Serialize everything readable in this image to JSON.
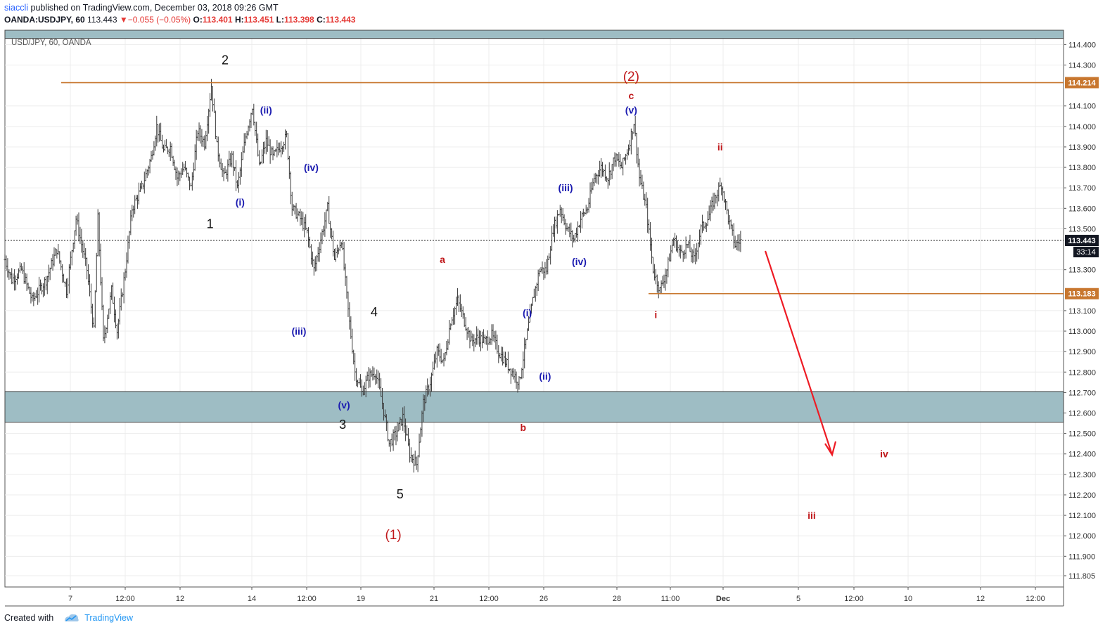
{
  "header": {
    "author": "siaccli",
    "published_text": " published on TradingView.com, December 03, 2018 09:26 GMT",
    "symbol": "OANDA:USDJPY, 60",
    "last": "113.443",
    "change_arrow": "▼",
    "change": "−0.055 (−0.05%)",
    "open_label": "O:",
    "open": "113.401",
    "high_label": "H:",
    "high": "113.451",
    "low_label": "L:",
    "low": "113.398",
    "close_label": "C:",
    "close": "113.443"
  },
  "footer": {
    "created_with": "Created with",
    "brand": "TradingView"
  },
  "colors": {
    "candle": "#3b3b3b",
    "zone": "#9ebdc4",
    "hline": "#c8772f",
    "label_blue": "#1a1ab0",
    "label_red": "#c0181b",
    "arrow": "#ee1b24"
  },
  "chart_data": {
    "type": "bar",
    "watermark": "USD/JPY, 60, OANDA",
    "ylim": [
      111.75,
      114.47
    ],
    "y_ticks": [
      "114.400",
      "114.300",
      "114.100",
      "114.000",
      "113.900",
      "113.800",
      "113.700",
      "113.600",
      "113.500",
      "113.300",
      "113.100",
      "113.000",
      "112.900",
      "112.800",
      "112.700",
      "112.600",
      "112.500",
      "112.400",
      "112.300",
      "112.200",
      "112.100",
      "112.000",
      "111.900",
      "111.805"
    ],
    "x_ticks": [
      "7",
      "12:00",
      "12",
      "14",
      "12:00",
      "19",
      "21",
      "12:00",
      "26",
      "28",
      "11:00",
      "Dec",
      "5",
      "12:00",
      "10",
      "12",
      "12:00"
    ],
    "x_tick_bold": "Dec",
    "price_tags": [
      {
        "label": "114.214",
        "price": 114.214,
        "kind": "level"
      },
      {
        "label": "113.443",
        "price": 113.443,
        "kind": "last"
      },
      {
        "label": "113.183",
        "price": 113.183,
        "kind": "level"
      }
    ],
    "countdown": "33:14",
    "resistance_level": 114.214,
    "support_level": 113.183,
    "demand_zone": [
      112.555,
      112.705
    ],
    "top_zone": [
      114.43,
      114.47
    ],
    "last_price": 113.443,
    "price_path": [
      [
        0,
        113.35
      ],
      [
        5,
        113.25
      ],
      [
        12,
        113.3
      ],
      [
        20,
        113.15
      ],
      [
        30,
        113.25
      ],
      [
        38,
        113.4
      ],
      [
        45,
        113.2
      ],
      [
        52,
        113.55
      ],
      [
        60,
        113.3
      ],
      [
        65,
        113.0
      ],
      [
        68,
        113.55
      ],
      [
        72,
        112.95
      ],
      [
        78,
        113.2
      ],
      [
        82,
        113.0
      ],
      [
        88,
        113.3
      ],
      [
        93,
        113.6
      ],
      [
        100,
        113.7
      ],
      [
        107,
        113.85
      ],
      [
        111,
        114.0
      ],
      [
        116,
        113.88
      ],
      [
        121,
        113.9
      ],
      [
        126,
        113.75
      ],
      [
        131,
        113.8
      ],
      [
        136,
        113.7
      ],
      [
        141,
        113.98
      ],
      [
        146,
        113.92
      ],
      [
        151,
        114.2
      ],
      [
        155,
        113.9
      ],
      [
        160,
        113.75
      ],
      [
        166,
        113.85
      ],
      [
        170,
        113.7
      ],
      [
        176,
        113.95
      ],
      [
        181,
        114.1
      ],
      [
        186,
        113.8
      ],
      [
        191,
        113.93
      ],
      [
        196,
        113.85
      ],
      [
        201,
        113.9
      ],
      [
        206,
        113.95
      ],
      [
        210,
        113.6
      ],
      [
        216,
        113.55
      ],
      [
        221,
        113.48
      ],
      [
        226,
        113.3
      ],
      [
        231,
        113.45
      ],
      [
        236,
        113.6
      ],
      [
        241,
        113.35
      ],
      [
        246,
        113.45
      ],
      [
        251,
        113.1
      ],
      [
        256,
        112.8
      ],
      [
        261,
        112.7
      ],
      [
        266,
        112.78
      ],
      [
        271,
        112.8
      ],
      [
        276,
        112.65
      ],
      [
        281,
        112.45
      ],
      [
        286,
        112.5
      ],
      [
        291,
        112.58
      ],
      [
        296,
        112.4
      ],
      [
        301,
        112.35
      ],
      [
        306,
        112.65
      ],
      [
        311,
        112.75
      ],
      [
        316,
        112.9
      ],
      [
        321,
        112.85
      ],
      [
        326,
        113.05
      ],
      [
        331,
        113.15
      ],
      [
        336,
        113.05
      ],
      [
        341,
        112.95
      ],
      [
        346,
        112.97
      ],
      [
        351,
        112.95
      ],
      [
        356,
        112.98
      ],
      [
        361,
        112.9
      ],
      [
        366,
        112.85
      ],
      [
        371,
        112.8
      ],
      [
        376,
        112.75
      ],
      [
        381,
        112.95
      ],
      [
        386,
        113.15
      ],
      [
        391,
        113.3
      ],
      [
        396,
        113.3
      ],
      [
        401,
        113.5
      ],
      [
        406,
        113.6
      ],
      [
        411,
        113.5
      ],
      [
        416,
        113.45
      ],
      [
        421,
        113.55
      ],
      [
        426,
        113.6
      ],
      [
        431,
        113.75
      ],
      [
        436,
        113.8
      ],
      [
        441,
        113.75
      ],
      [
        446,
        113.85
      ],
      [
        451,
        113.8
      ],
      [
        456,
        113.9
      ],
      [
        460,
        114.02
      ],
      [
        464,
        113.75
      ],
      [
        469,
        113.6
      ],
      [
        474,
        113.3
      ],
      [
        479,
        113.2
      ],
      [
        484,
        113.3
      ],
      [
        489,
        113.45
      ],
      [
        494,
        113.38
      ],
      [
        499,
        113.42
      ],
      [
        504,
        113.35
      ],
      [
        509,
        113.5
      ],
      [
        514,
        113.55
      ],
      [
        519,
        113.65
      ],
      [
        524,
        113.72
      ],
      [
        529,
        113.55
      ],
      [
        534,
        113.42
      ],
      [
        538,
        113.443
      ]
    ],
    "wave_labels": [
      {
        "text": "2",
        "price": 114.32,
        "bar": 161,
        "color": "black"
      },
      {
        "text": "1",
        "price": 113.52,
        "bar": 150,
        "color": "black"
      },
      {
        "text": "4",
        "price": 113.09,
        "bar": 270,
        "color": "black"
      },
      {
        "text": "3",
        "price": 112.54,
        "bar": 247,
        "color": "black"
      },
      {
        "text": "5",
        "price": 112.2,
        "bar": 289,
        "color": "black"
      },
      {
        "text": "(1)",
        "price": 112.0,
        "bar": 284,
        "color": "red-plain"
      },
      {
        "text": "(2)",
        "price": 114.24,
        "bar": 458,
        "color": "red-plain"
      },
      {
        "text": "c",
        "price": 114.15,
        "bar": 458,
        "color": "red"
      },
      {
        "text": "(v)",
        "price": 114.08,
        "bar": 458,
        "color": "blue"
      },
      {
        "text": "(ii)",
        "price": 114.08,
        "bar": 191,
        "color": "blue"
      },
      {
        "text": "(i)",
        "price": 113.63,
        "bar": 172,
        "color": "blue"
      },
      {
        "text": "(iv)",
        "price": 113.8,
        "bar": 224,
        "color": "blue"
      },
      {
        "text": "(iii)",
        "price": 113.0,
        "bar": 215,
        "color": "blue"
      },
      {
        "text": "(v)",
        "price": 112.64,
        "bar": 248,
        "color": "blue"
      },
      {
        "text": "a",
        "price": 113.35,
        "bar": 320,
        "color": "red"
      },
      {
        "text": "b",
        "price": 112.53,
        "bar": 379,
        "color": "red"
      },
      {
        "text": "(i)",
        "price": 113.09,
        "bar": 382,
        "color": "blue"
      },
      {
        "text": "(ii)",
        "price": 112.78,
        "bar": 395,
        "color": "blue"
      },
      {
        "text": "(iii)",
        "price": 113.7,
        "bar": 410,
        "color": "blue"
      },
      {
        "text": "(iv)",
        "price": 113.34,
        "bar": 420,
        "color": "blue"
      },
      {
        "text": "i",
        "price": 113.08,
        "bar": 476,
        "color": "red"
      },
      {
        "text": "ii",
        "price": 113.9,
        "bar": 523,
        "color": "red"
      },
      {
        "text": "iii",
        "price": 112.1,
        "bar": 590,
        "color": "red"
      },
      {
        "text": "iv",
        "price": 112.4,
        "bar": 643,
        "color": "red"
      }
    ]
  }
}
